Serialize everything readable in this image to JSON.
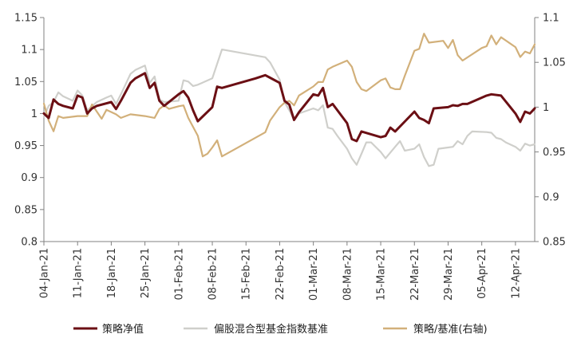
{
  "chart_data": {
    "type": "line",
    "title": "",
    "xlabel": "",
    "ylabel": "",
    "ylim_left": [
      0.8,
      1.15
    ],
    "ylim_right": [
      0.85,
      1.1
    ],
    "grid": false,
    "legend_placement": "bottom",
    "y_ticks_left": [
      "0.8",
      "0.85",
      "0.9",
      "0.95",
      "1",
      "1.05",
      "1.1",
      "1.15"
    ],
    "y_ticks_right": [
      "0.85",
      "0.9",
      "0.95",
      "1",
      "1.05",
      "1.1"
    ],
    "x_ticks": [
      {
        "date": "2021-01-04",
        "label": "04-Jan-21"
      },
      {
        "date": "2021-01-11",
        "label": "11-Jan-21"
      },
      {
        "date": "2021-01-18",
        "label": "18-Jan-21"
      },
      {
        "date": "2021-01-25",
        "label": "25-Jan-21"
      },
      {
        "date": "2021-02-01",
        "label": "01-Feb-21"
      },
      {
        "date": "2021-02-08",
        "label": "08-Feb-21"
      },
      {
        "date": "2021-02-15",
        "label": "15-Feb-21"
      },
      {
        "date": "2021-02-22",
        "label": "22-Feb-21"
      },
      {
        "date": "2021-03-01",
        "label": "01-Mar-21"
      },
      {
        "date": "2021-03-08",
        "label": "08-Mar-21"
      },
      {
        "date": "2021-03-15",
        "label": "15-Mar-21"
      },
      {
        "date": "2021-03-22",
        "label": "22-Mar-21"
      },
      {
        "date": "2021-03-29",
        "label": "29-Mar-21"
      },
      {
        "date": "2021-04-05",
        "label": "05-Apr-21"
      },
      {
        "date": "2021-04-12",
        "label": "12-Apr-21"
      }
    ],
    "series": [
      {
        "name": "策略净值",
        "axis": "left",
        "color": "#6b0f14",
        "points": [
          [
            "2021-01-04",
            1.0
          ],
          [
            "2021-01-05",
            0.993
          ],
          [
            "2021-01-06",
            1.022
          ],
          [
            "2021-01-07",
            1.015
          ],
          [
            "2021-01-08",
            1.012
          ],
          [
            "2021-01-10",
            1.008
          ],
          [
            "2021-01-11",
            1.028
          ],
          [
            "2021-01-12",
            1.025
          ],
          [
            "2021-01-13",
            1.0
          ],
          [
            "2021-01-14",
            1.008
          ],
          [
            "2021-01-15",
            1.012
          ],
          [
            "2021-01-18",
            1.018
          ],
          [
            "2021-01-19",
            1.007
          ],
          [
            "2021-01-20",
            1.02
          ],
          [
            "2021-01-22",
            1.048
          ],
          [
            "2021-01-23",
            1.055
          ],
          [
            "2021-01-25",
            1.063
          ],
          [
            "2021-01-26",
            1.04
          ],
          [
            "2021-01-27",
            1.048
          ],
          [
            "2021-01-28",
            1.02
          ],
          [
            "2021-01-29",
            1.012
          ],
          [
            "2021-02-01",
            1.03
          ],
          [
            "2021-02-02",
            1.035
          ],
          [
            "2021-02-03",
            1.025
          ],
          [
            "2021-02-04",
            1.005
          ],
          [
            "2021-02-05",
            0.988
          ],
          [
            "2021-02-08",
            1.01
          ],
          [
            "2021-02-09",
            1.042
          ],
          [
            "2021-02-10",
            1.04
          ],
          [
            "2021-02-17",
            1.055
          ],
          [
            "2021-02-19",
            1.06
          ],
          [
            "2021-02-20",
            1.056
          ],
          [
            "2021-02-22",
            1.048
          ],
          [
            "2021-02-23",
            1.02
          ],
          [
            "2021-02-24",
            1.014
          ],
          [
            "2021-02-25",
            0.99
          ],
          [
            "2021-02-26",
            1.002
          ],
          [
            "2021-03-01",
            1.03
          ],
          [
            "2021-03-02",
            1.028
          ],
          [
            "2021-03-03",
            1.04
          ],
          [
            "2021-03-04",
            1.01
          ],
          [
            "2021-03-05",
            1.015
          ],
          [
            "2021-03-06",
            1.005
          ],
          [
            "2021-03-08",
            0.985
          ],
          [
            "2021-03-09",
            0.96
          ],
          [
            "2021-03-10",
            0.957
          ],
          [
            "2021-03-11",
            0.972
          ],
          [
            "2021-03-15",
            0.963
          ],
          [
            "2021-03-16",
            0.965
          ],
          [
            "2021-03-17",
            0.978
          ],
          [
            "2021-03-18",
            0.972
          ],
          [
            "2021-03-22",
            1.003
          ],
          [
            "2021-03-23",
            0.993
          ],
          [
            "2021-03-24",
            0.99
          ],
          [
            "2021-03-25",
            0.985
          ],
          [
            "2021-03-26",
            1.008
          ],
          [
            "2021-03-29",
            1.01
          ],
          [
            "2021-03-30",
            1.013
          ],
          [
            "2021-03-31",
            1.012
          ],
          [
            "2021-04-01",
            1.015
          ],
          [
            "2021-04-02",
            1.015
          ],
          [
            "2021-04-06",
            1.028
          ],
          [
            "2021-04-07",
            1.03
          ],
          [
            "2021-04-09",
            1.028
          ],
          [
            "2021-04-12",
            1.0
          ],
          [
            "2021-04-13",
            0.987
          ],
          [
            "2021-04-14",
            1.003
          ],
          [
            "2021-04-15",
            1.0
          ],
          [
            "2021-04-16",
            1.008
          ]
        ]
      },
      {
        "name": "偏股混合型基金指数基准",
        "axis": "left",
        "color": "#cfcfcb",
        "points": [
          [
            "2021-01-04",
            0.995
          ],
          [
            "2021-01-05",
            1.012
          ],
          [
            "2021-01-06",
            1.018
          ],
          [
            "2021-01-07",
            1.033
          ],
          [
            "2021-01-08",
            1.027
          ],
          [
            "2021-01-10",
            1.02
          ],
          [
            "2021-01-11",
            1.036
          ],
          [
            "2021-01-12",
            1.028
          ],
          [
            "2021-01-13",
            1.005
          ],
          [
            "2021-01-15",
            1.018
          ],
          [
            "2021-01-17",
            1.025
          ],
          [
            "2021-01-18",
            1.028
          ],
          [
            "2021-01-19",
            1.015
          ],
          [
            "2021-01-20",
            1.03
          ],
          [
            "2021-01-22",
            1.062
          ],
          [
            "2021-01-23",
            1.068
          ],
          [
            "2021-01-25",
            1.075
          ],
          [
            "2021-01-26",
            1.048
          ],
          [
            "2021-01-27",
            1.058
          ],
          [
            "2021-01-28",
            1.022
          ],
          [
            "2021-01-29",
            1.018
          ],
          [
            "2021-02-01",
            1.02
          ],
          [
            "2021-02-02",
            1.052
          ],
          [
            "2021-02-03",
            1.05
          ],
          [
            "2021-02-04",
            1.043
          ],
          [
            "2021-02-05",
            1.045
          ],
          [
            "2021-02-08",
            1.055
          ],
          [
            "2021-02-10",
            1.1
          ],
          [
            "2021-02-19",
            1.088
          ],
          [
            "2021-02-20",
            1.08
          ],
          [
            "2021-02-22",
            1.053
          ],
          [
            "2021-02-23",
            1.018
          ],
          [
            "2021-02-24",
            1.005
          ],
          [
            "2021-02-25",
            0.99
          ],
          [
            "2021-02-26",
            1.0
          ],
          [
            "2021-03-01",
            1.008
          ],
          [
            "2021-03-02",
            1.005
          ],
          [
            "2021-03-03",
            1.013
          ],
          [
            "2021-03-04",
            0.978
          ],
          [
            "2021-03-05",
            0.976
          ],
          [
            "2021-03-06",
            0.965
          ],
          [
            "2021-03-08",
            0.945
          ],
          [
            "2021-03-09",
            0.93
          ],
          [
            "2021-03-10",
            0.92
          ],
          [
            "2021-03-11",
            0.937
          ],
          [
            "2021-03-12",
            0.955
          ],
          [
            "2021-03-13",
            0.955
          ],
          [
            "2021-03-15",
            0.94
          ],
          [
            "2021-03-16",
            0.93
          ],
          [
            "2021-03-18",
            0.948
          ],
          [
            "2021-03-19",
            0.957
          ],
          [
            "2021-03-20",
            0.942
          ],
          [
            "2021-03-22",
            0.945
          ],
          [
            "2021-03-23",
            0.952
          ],
          [
            "2021-03-24",
            0.932
          ],
          [
            "2021-03-25",
            0.918
          ],
          [
            "2021-03-26",
            0.92
          ],
          [
            "2021-03-27",
            0.945
          ],
          [
            "2021-03-29",
            0.947
          ],
          [
            "2021-03-30",
            0.948
          ],
          [
            "2021-03-31",
            0.957
          ],
          [
            "2021-04-01",
            0.952
          ],
          [
            "2021-04-02",
            0.965
          ],
          [
            "2021-04-03",
            0.972
          ],
          [
            "2021-04-06",
            0.971
          ],
          [
            "2021-04-07",
            0.97
          ],
          [
            "2021-04-08",
            0.962
          ],
          [
            "2021-04-09",
            0.96
          ],
          [
            "2021-04-10",
            0.955
          ],
          [
            "2021-04-12",
            0.948
          ],
          [
            "2021-04-13",
            0.942
          ],
          [
            "2021-04-14",
            0.953
          ],
          [
            "2021-04-15",
            0.95
          ],
          [
            "2021-04-16",
            0.952
          ]
        ]
      },
      {
        "name": "策略/基准(右轴)",
        "axis": "right",
        "color": "#d2b07a",
        "points": [
          [
            "2021-01-04",
            1.004
          ],
          [
            "2021-01-05",
            0.985
          ],
          [
            "2021-01-06",
            0.973
          ],
          [
            "2021-01-07",
            0.99
          ],
          [
            "2021-01-08",
            0.988
          ],
          [
            "2021-01-11",
            0.99
          ],
          [
            "2021-01-13",
            0.99
          ],
          [
            "2021-01-14",
            1.003
          ],
          [
            "2021-01-15",
            0.995
          ],
          [
            "2021-01-16",
            0.987
          ],
          [
            "2021-01-17",
            0.997
          ],
          [
            "2021-01-19",
            0.992
          ],
          [
            "2021-01-20",
            0.988
          ],
          [
            "2021-01-22",
            0.992
          ],
          [
            "2021-01-25",
            0.99
          ],
          [
            "2021-01-27",
            0.988
          ],
          [
            "2021-01-28",
            0.998
          ],
          [
            "2021-01-29",
            1.002
          ],
          [
            "2021-01-30",
            0.998
          ],
          [
            "2021-02-01",
            1.001
          ],
          [
            "2021-02-02",
            1.002
          ],
          [
            "2021-02-03",
            0.988
          ],
          [
            "2021-02-04",
            0.978
          ],
          [
            "2021-02-05",
            0.968
          ],
          [
            "2021-02-06",
            0.945
          ],
          [
            "2021-02-07",
            0.948
          ],
          [
            "2021-02-08",
            0.955
          ],
          [
            "2021-02-09",
            0.963
          ],
          [
            "2021-02-10",
            0.945
          ],
          [
            "2021-02-19",
            0.972
          ],
          [
            "2021-02-20",
            0.985
          ],
          [
            "2021-02-22",
            1.0
          ],
          [
            "2021-02-23",
            1.005
          ],
          [
            "2021-02-24",
            1.007
          ],
          [
            "2021-02-25",
            1.002
          ],
          [
            "2021-02-26",
            1.013
          ],
          [
            "2021-03-01",
            1.023
          ],
          [
            "2021-03-02",
            1.028
          ],
          [
            "2021-03-03",
            1.028
          ],
          [
            "2021-03-04",
            1.042
          ],
          [
            "2021-03-05",
            1.045
          ],
          [
            "2021-03-08",
            1.052
          ],
          [
            "2021-03-09",
            1.045
          ],
          [
            "2021-03-10",
            1.028
          ],
          [
            "2021-03-11",
            1.02
          ],
          [
            "2021-03-12",
            1.018
          ],
          [
            "2021-03-15",
            1.03
          ],
          [
            "2021-03-16",
            1.032
          ],
          [
            "2021-03-17",
            1.022
          ],
          [
            "2021-03-18",
            1.02
          ],
          [
            "2021-03-19",
            1.02
          ],
          [
            "2021-03-20",
            1.035
          ],
          [
            "2021-03-22",
            1.063
          ],
          [
            "2021-03-23",
            1.065
          ],
          [
            "2021-03-24",
            1.082
          ],
          [
            "2021-03-25",
            1.072
          ],
          [
            "2021-03-28",
            1.074
          ],
          [
            "2021-03-29",
            1.066
          ],
          [
            "2021-03-30",
            1.075
          ],
          [
            "2021-03-31",
            1.058
          ],
          [
            "2021-04-01",
            1.052
          ],
          [
            "2021-04-05",
            1.066
          ],
          [
            "2021-04-06",
            1.068
          ],
          [
            "2021-04-07",
            1.08
          ],
          [
            "2021-04-08",
            1.07
          ],
          [
            "2021-04-09",
            1.078
          ],
          [
            "2021-04-12",
            1.067
          ],
          [
            "2021-04-13",
            1.056
          ],
          [
            "2021-04-14",
            1.062
          ],
          [
            "2021-04-15",
            1.06
          ],
          [
            "2021-04-16",
            1.07
          ]
        ]
      }
    ]
  }
}
